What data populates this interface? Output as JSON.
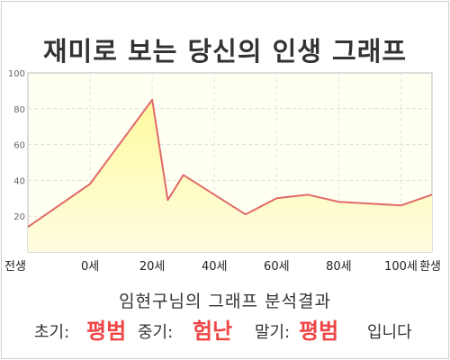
{
  "title": "재미로 보는 당신의 인생 그래프",
  "subtitle": "임현구님의 그래프 분석결과",
  "verdict": {
    "early_label": "초기:",
    "early_value": "평범",
    "middle_label": "중기:",
    "middle_value": "험난",
    "late_label": "말기:",
    "late_value": "평범",
    "ending": "입니다"
  },
  "colors": {
    "line": "#e06a6a",
    "fill_top": "#fdfaa8",
    "plot_bg": "#fffff0",
    "highlight": "#ef4545"
  },
  "chart_data": {
    "type": "area",
    "title": "재미로 보는 당신의 인생 그래프",
    "xlabel": "",
    "ylabel": "",
    "x_tick_labels": [
      "전생",
      "0세",
      "20세",
      "40세",
      "60세",
      "80세",
      "100세",
      "환생"
    ],
    "y_ticks": [
      20,
      40,
      60,
      80,
      100
    ],
    "ylim": [
      0,
      100
    ],
    "x": [
      -20,
      0,
      20,
      25,
      30,
      40,
      50,
      60,
      70,
      80,
      100,
      110
    ],
    "values": [
      14,
      38,
      85,
      29,
      43,
      32,
      21,
      30,
      32,
      28,
      26,
      32
    ],
    "grid": true,
    "legend": "none"
  }
}
